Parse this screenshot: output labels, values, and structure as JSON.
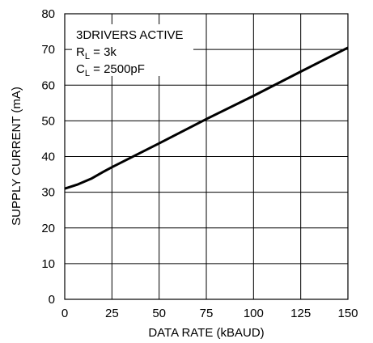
{
  "chart_data": {
    "type": "line",
    "xlabel": "DATA RATE (kBAUD)",
    "ylabel": "SUPPLY CURRENT (mA)",
    "xlim": [
      0,
      150
    ],
    "ylim": [
      0,
      80
    ],
    "x_ticks": [
      "0",
      "25",
      "50",
      "75",
      "100",
      "125",
      "150"
    ],
    "y_ticks": [
      "0",
      "10",
      "20",
      "30",
      "40",
      "50",
      "60",
      "70",
      "80"
    ],
    "grid": true,
    "annotation": {
      "line1": "3DRIVERS ACTIVE",
      "line2_main": "R",
      "line2_sub": "L",
      "line2_rest": " = 3k",
      "line3_main": "C",
      "line3_sub": "L",
      "line3_rest": " = 2500pF"
    },
    "series": [
      {
        "x": [
          0,
          7,
          14,
          20,
          25,
          50,
          75,
          100,
          125,
          150
        ],
        "y": [
          31,
          32.2,
          33.8,
          35.6,
          37,
          43.7,
          50.5,
          57,
          63.8,
          70.5
        ]
      }
    ]
  }
}
